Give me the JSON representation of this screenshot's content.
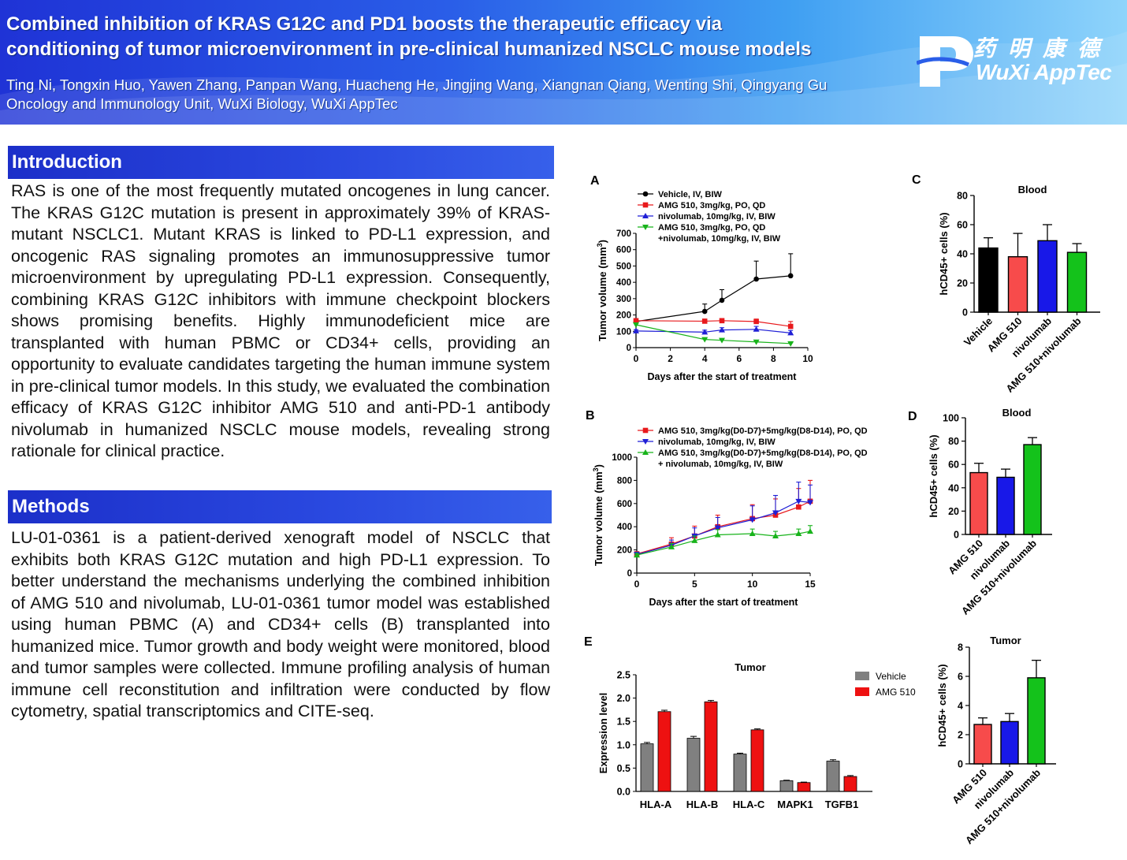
{
  "header": {
    "title_line1": "Combined inhibition of KRAS G12C and PD1 boosts the therapeutic efficacy via",
    "title_line2": "conditioning of tumor microenvironment in pre-clinical humanized NSCLC mouse models",
    "authors": "Ting Ni, Tongxin Huo, Yawen Zhang, Panpan Wang, Huacheng He, Jingjing Wang, Xiangnan Qiang, Wenting Shi, Qingyang Gu",
    "affiliation": "Oncology and  Immunology Unit, WuXi Biology, WuXi AppTec",
    "logo_cn": "药明康德",
    "logo_en": "WuXi AppTec"
  },
  "introduction": {
    "heading": "Introduction",
    "text": "RAS is one of the most frequently mutated oncogenes in lung cancer. The KRAS G12C mutation is present in approximately 39% of KRAS-mutant NSCLC1. Mutant KRAS is linked to PD-L1 expression, and oncogenic RAS signaling promotes an immunosuppressive tumor microenvironment by upregulating PD-L1 expression. Consequently, combining KRAS G12C inhibitors with immune checkpoint blockers shows promising benefits. Highly immunodeficient mice are transplanted with human PBMC or CD34+ cells, providing an opportunity to evaluate candidates targeting the human immune system in pre-clinical tumor models. In this study, we evaluated the combination efficacy of KRAS G12C inhibitor AMG 510 and anti-PD-1 antibody nivolumab in humanized NSCLC mouse models, revealing strong rationale for clinical practice."
  },
  "methods": {
    "heading": "Methods",
    "text": "LU-01-0361 is a patient-derived xenograft model of NSCLC that exhibits both KRAS G12C mutation and high PD-L1 expression. To better understand the mechanisms underlying the combined inhibition of AMG 510 and nivolumab, LU-01-0361 tumor model was established using human PBMC (A) and CD34+ cells (B) transplanted into humanized mice. Tumor growth and body weight were monitored, blood and tumor samples were collected. Immune profiling analysis of human immune cell reconstitution and infiltration were conducted by flow cytometry, spatial transcriptomics and CITE-seq."
  },
  "chart_data": [
    {
      "panel": "A",
      "type": "line",
      "xlabel": "Days after the start of treatment",
      "ylabel": "Tumor volume (mm",
      "ylabel_sup": "3",
      "ylabel_end": ")",
      "xlim": [
        0,
        10
      ],
      "ylim": [
        0,
        700
      ],
      "xticks": [
        "0",
        "2",
        "4",
        "6",
        "8",
        "10"
      ],
      "yticks": [
        "0",
        "100",
        "200",
        "300",
        "400",
        "500",
        "600",
        "700"
      ],
      "series": [
        {
          "name": "Vehicle, IV, BIW",
          "color": "#000000",
          "marker": "circle",
          "x": [
            0,
            4,
            5,
            7,
            9
          ],
          "y": [
            160,
            222,
            290,
            420,
            440
          ],
          "err": [
            10,
            45,
            65,
            110,
            135
          ]
        },
        {
          "name": "AMG 510, 3mg/kg, PO, QD",
          "color": "#e8191c",
          "marker": "square",
          "x": [
            0,
            4,
            5,
            7,
            9
          ],
          "y": [
            165,
            162,
            165,
            160,
            130
          ],
          "err": [
            10,
            12,
            12,
            15,
            30
          ]
        },
        {
          "name": "nivolumab, 10mg/kg, IV, BIW",
          "color": "#1f1fd6",
          "marker": "triangle",
          "x": [
            0,
            4,
            5,
            7,
            9
          ],
          "y": [
            102,
            95,
            108,
            112,
            90
          ],
          "err": [
            8,
            12,
            14,
            18,
            15
          ]
        },
        {
          "name": "AMG 510, 3mg/kg, PO, QD",
          "name2": "+nivolumab, 10mg/kg, IV, BIW",
          "color": "#18b31b",
          "marker": "triangle-down",
          "x": [
            0,
            4,
            5,
            7,
            9
          ],
          "y": [
            140,
            50,
            45,
            35,
            25
          ],
          "err": [
            8,
            5,
            5,
            4,
            4
          ]
        }
      ]
    },
    {
      "panel": "B",
      "type": "line",
      "xlabel": "Days after the start of treatment",
      "ylabel": "Tumor volume (mm",
      "ylabel_sup": "3",
      "ylabel_end": ")",
      "xlim": [
        0,
        15
      ],
      "ylim": [
        0,
        1000
      ],
      "xticks": [
        "0",
        "5",
        "10",
        "15"
      ],
      "yticks": [
        "0",
        "200",
        "400",
        "600",
        "800",
        "1000"
      ],
      "series": [
        {
          "name": "AMG 510, 3mg/kg(D0-D7)+5mg/kg(D8-D14), PO, QD",
          "color": "#e8191c",
          "marker": "square",
          "x": [
            0,
            3,
            5,
            7,
            10,
            12,
            14,
            15
          ],
          "y": [
            165,
            250,
            320,
            400,
            470,
            500,
            570,
            620
          ],
          "err": [
            20,
            55,
            85,
            100,
            120,
            140,
            160,
            180
          ]
        },
        {
          "name": "nivolumab, 10mg/kg, IV, BIW",
          "color": "#1f1fd6",
          "marker": "triangle-down",
          "x": [
            0,
            3,
            5,
            7,
            10,
            12,
            14,
            15
          ],
          "y": [
            160,
            240,
            320,
            390,
            460,
            520,
            620,
            610
          ],
          "err": [
            20,
            45,
            70,
            90,
            120,
            150,
            165,
            150
          ]
        },
        {
          "name": "AMG 510, 3mg/kg(D0-D7)+5mg/kg(D8-D14), PO, QD",
          "name2": "+ nivolumab, 10mg/kg, IV, BIW",
          "color": "#18b31b",
          "marker": "triangle",
          "x": [
            0,
            3,
            5,
            7,
            10,
            12,
            14,
            15
          ],
          "y": [
            155,
            225,
            280,
            330,
            340,
            320,
            340,
            360
          ],
          "err": [
            15,
            30,
            40,
            45,
            40,
            40,
            40,
            50
          ]
        }
      ]
    },
    {
      "panel": "C",
      "type": "bar",
      "title": "Blood",
      "ylabel": "hCD45+ cells (%)",
      "ylim": [
        0,
        80
      ],
      "yticks": [
        "0",
        "20",
        "40",
        "60",
        "80"
      ],
      "categories": [
        "Vehicle",
        "AMG 510",
        "nivolumab",
        "AMG 510+nivolumab"
      ],
      "values": [
        44,
        38,
        49,
        41
      ],
      "err": [
        7,
        16,
        11,
        6
      ],
      "colors": [
        "#000000",
        "#f74b4b",
        "#1818e8",
        "#14c21b"
      ]
    },
    {
      "panel": "D",
      "type": "bar",
      "title": "Blood",
      "ylabel": "hCD45+ cells (%)",
      "ylim": [
        0,
        100
      ],
      "yticks": [
        "0",
        "20",
        "40",
        "60",
        "80",
        "100"
      ],
      "categories": [
        "AMG 510",
        "nivolumab",
        "AMG 510+nivolumab"
      ],
      "values": [
        53,
        49,
        77
      ],
      "err": [
        8,
        7,
        6
      ],
      "colors": [
        "#f74b4b",
        "#1818e8",
        "#14c21b"
      ]
    },
    {
      "panel": "D2",
      "type": "bar",
      "title": "Tumor",
      "ylabel": "hCD45+ cells (%)",
      "ylim": [
        0,
        8
      ],
      "yticks": [
        "0",
        "2",
        "4",
        "6",
        "8"
      ],
      "categories": [
        "AMG 510",
        "nivolumab",
        "AMG 510+nivolumab"
      ],
      "values": [
        2.7,
        2.9,
        5.9
      ],
      "err": [
        0.45,
        0.55,
        1.2
      ],
      "colors": [
        "#f74b4b",
        "#1818e8",
        "#14c21b"
      ]
    },
    {
      "panel": "E",
      "type": "bar",
      "title": "Tumor",
      "ylabel": "Expression level",
      "ylim": [
        0,
        2.5
      ],
      "yticks": [
        "0.0",
        "0.5",
        "1.0",
        "1.5",
        "2.0",
        "2.5"
      ],
      "categories": [
        "HLA-A",
        "HLA-B",
        "HLA-C",
        "MAPK1",
        "TGFB1"
      ],
      "series": [
        {
          "name": "Vehicle",
          "color": "#808080",
          "values": [
            1.02,
            1.14,
            0.8,
            0.23,
            0.65
          ],
          "err": [
            0.03,
            0.04,
            0.02,
            0.01,
            0.03
          ]
        },
        {
          "name": "AMG 510",
          "color": "#ee1111",
          "values": [
            1.71,
            1.92,
            1.32,
            0.19,
            0.32
          ],
          "err": [
            0.03,
            0.03,
            0.02,
            0.01,
            0.02
          ]
        }
      ]
    }
  ]
}
